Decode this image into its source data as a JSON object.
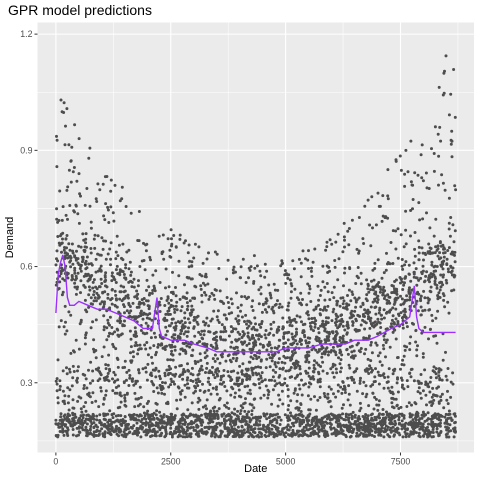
{
  "chart_data": {
    "type": "scatter",
    "title": "GPR model predictions",
    "xlabel": "Date",
    "ylabel": "Demand",
    "xlim": [
      -400,
      9100
    ],
    "ylim": [
      0.12,
      1.23
    ],
    "x_ticks": [
      0,
      2500,
      5000,
      7500
    ],
    "x_tick_labels": [
      "0",
      "2500",
      "5000",
      "7500"
    ],
    "y_ticks": [
      0.3,
      0.6,
      0.9,
      1.2
    ],
    "y_tick_labels": [
      "0.3",
      "0.6",
      "0.9",
      "1.2"
    ],
    "grid": true,
    "background": "#ebebeb",
    "point_color": "#4d4d4d",
    "line_color": "#9b30ff",
    "series": [
      {
        "kind": "points",
        "x_range": [
          0,
          8700
        ],
        "n_points": 4400,
        "description_values": {
          "low_band_y": [
            0.16,
            0.22
          ],
          "upper_envelope": [
            [
              0,
              1.06
            ],
            [
              1000,
              0.86
            ],
            [
              2000,
              0.74
            ],
            [
              3000,
              0.66
            ],
            [
              4000,
              0.63
            ],
            [
              5000,
              0.63
            ],
            [
              6000,
              0.68
            ],
            [
              7000,
              0.82
            ],
            [
              8000,
              0.98
            ],
            [
              8500,
              1.15
            ]
          ]
        }
      },
      {
        "kind": "line",
        "x": [
          0,
          50,
          100,
          150,
          200,
          250,
          300,
          400,
          500,
          700,
          900,
          1100,
          1300,
          1500,
          1700,
          1900,
          2100,
          2200,
          2250,
          2300,
          2500,
          2800,
          3000,
          3300,
          3500,
          3800,
          4000,
          4300,
          4500,
          4800,
          5000,
          5300,
          5500,
          5800,
          6000,
          6300,
          6500,
          6800,
          7000,
          7300,
          7500,
          7700,
          7800,
          7850,
          7900,
          8000,
          8700
        ],
        "y": [
          0.48,
          0.58,
          0.61,
          0.63,
          0.6,
          0.52,
          0.5,
          0.5,
          0.51,
          0.5,
          0.49,
          0.49,
          0.48,
          0.47,
          0.46,
          0.44,
          0.44,
          0.52,
          0.44,
          0.42,
          0.41,
          0.41,
          0.4,
          0.39,
          0.38,
          0.38,
          0.38,
          0.38,
          0.38,
          0.38,
          0.39,
          0.39,
          0.39,
          0.4,
          0.4,
          0.4,
          0.41,
          0.41,
          0.42,
          0.44,
          0.45,
          0.47,
          0.55,
          0.47,
          0.44,
          0.43,
          0.43
        ]
      }
    ]
  }
}
